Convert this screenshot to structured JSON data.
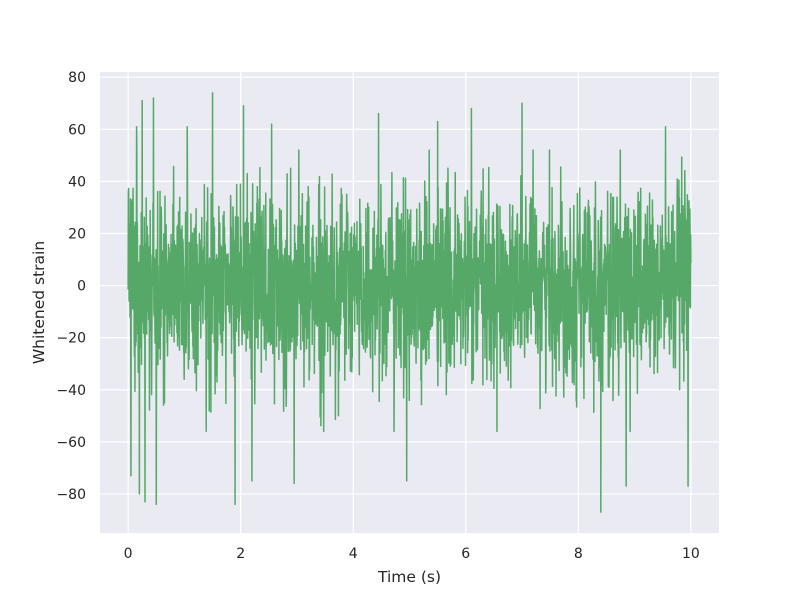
{
  "chart_data": {
    "type": "line",
    "title": "",
    "xlabel": "Time (s)",
    "ylabel": "Whitened strain",
    "xlim": [
      -0.5,
      10.5
    ],
    "ylim": [
      -95,
      82
    ],
    "x_ticks": [
      0,
      2,
      4,
      6,
      8,
      10
    ],
    "y_ticks": [
      -80,
      -60,
      -40,
      -20,
      0,
      20,
      40,
      60,
      80
    ],
    "x_tick_labels": [
      "0",
      "2",
      "4",
      "6",
      "8",
      "10"
    ],
    "y_tick_labels": [
      "−80",
      "−60",
      "−40",
      "−20",
      "0",
      "20",
      "40",
      "60",
      "80"
    ],
    "grid": true,
    "background_color": "#eaeaf2",
    "grid_color": "#ffffff",
    "series": [
      {
        "color": "#55a868",
        "x_start": 0,
        "x_end": 10,
        "typical_envelope": [
          -40,
          40
        ],
        "max_value": 74,
        "min_value": -87,
        "peaks": [
          {
            "x": 0.15,
            "y": 61
          },
          {
            "x": 0.25,
            "y": 71
          },
          {
            "x": 0.45,
            "y": 72
          },
          {
            "x": 1.05,
            "y": 61
          },
          {
            "x": 1.5,
            "y": 74
          },
          {
            "x": 2.05,
            "y": 69
          },
          {
            "x": 2.55,
            "y": 62
          },
          {
            "x": 4.45,
            "y": 66
          },
          {
            "x": 5.5,
            "y": 63
          },
          {
            "x": 6.1,
            "y": 68
          },
          {
            "x": 7.0,
            "y": 70
          },
          {
            "x": 9.55,
            "y": 61
          }
        ],
        "troughs": [
          {
            "x": 0.05,
            "y": -73
          },
          {
            "x": 0.2,
            "y": -80
          },
          {
            "x": 0.3,
            "y": -83
          },
          {
            "x": 0.5,
            "y": -84
          },
          {
            "x": 1.9,
            "y": -84
          },
          {
            "x": 2.2,
            "y": -75
          },
          {
            "x": 2.95,
            "y": -76
          },
          {
            "x": 4.95,
            "y": -75
          },
          {
            "x": 8.4,
            "y": -87
          },
          {
            "x": 8.85,
            "y": -77
          },
          {
            "x": 9.95,
            "y": -77
          }
        ]
      }
    ]
  }
}
